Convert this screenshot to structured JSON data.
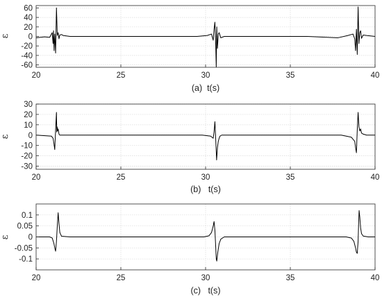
{
  "chart_data": [
    {
      "type": "line",
      "caption": "(a)  t(s)",
      "ylabel": "ε",
      "xlim": [
        20,
        40
      ],
      "ylim": [
        -65,
        65
      ],
      "xticks": [
        20,
        25,
        30,
        35,
        40
      ],
      "yticks": [
        -60,
        -40,
        -20,
        0,
        20,
        40,
        60
      ],
      "grid": true,
      "series": [
        {
          "x": [
            20,
            20.5,
            20.8,
            20.95,
            21.0,
            21.03,
            21.06,
            21.1,
            21.15,
            21.2,
            21.25,
            21.3,
            21.35,
            21.4,
            21.5,
            21.6,
            22,
            24,
            26,
            28,
            29.5,
            30.1,
            30.35,
            30.45,
            30.5,
            30.55,
            30.6,
            30.63,
            30.66,
            30.7,
            30.75,
            30.8,
            30.9,
            31.1,
            33,
            36,
            37.8,
            38.4,
            38.7,
            38.8,
            38.85,
            38.9,
            38.95,
            39.0,
            39.05,
            39.1,
            39.15,
            39.2,
            39.3,
            39.5,
            40
          ],
          "y": [
            -3,
            -1,
            -2,
            8,
            -15,
            12,
            -30,
            5,
            -35,
            60,
            2,
            8,
            -5,
            3,
            4,
            2,
            0,
            0,
            0,
            0,
            0,
            2,
            5,
            -8,
            15,
            30,
            -20,
            -65,
            20,
            -25,
            5,
            8,
            -3,
            0,
            0,
            0,
            -3,
            2,
            5,
            -5,
            -30,
            15,
            -38,
            62,
            -15,
            8,
            12,
            -4,
            3,
            2,
            0
          ]
        }
      ]
    },
    {
      "type": "line",
      "caption": "(b)   t(s)",
      "ylabel": "ε",
      "xlim": [
        20,
        40
      ],
      "ylim": [
        -33,
        30
      ],
      "xticks": [
        20,
        25,
        30,
        35,
        40
      ],
      "yticks": [
        -30,
        -20,
        -10,
        0,
        10,
        20,
        30
      ],
      "grid": true,
      "series": [
        {
          "x": [
            20,
            20.9,
            21.0,
            21.05,
            21.1,
            21.15,
            21.2,
            21.22,
            21.24,
            21.27,
            21.3,
            21.35,
            21.4,
            21.6,
            24,
            27,
            29.8,
            30.3,
            30.45,
            30.5,
            30.55,
            30.6,
            30.65,
            30.7,
            30.75,
            30.8,
            30.85,
            30.95,
            31.2,
            33,
            36,
            38.0,
            38.6,
            38.8,
            38.85,
            38.9,
            38.95,
            39.0,
            39.05,
            39.1,
            39.15,
            39.2,
            39.3,
            39.5,
            40
          ],
          "y": [
            0,
            -1,
            -3,
            -8,
            -14,
            5,
            22,
            3,
            8,
            4,
            6,
            1,
            0,
            0,
            0,
            0,
            0,
            -1,
            -3,
            3,
            13,
            -5,
            -24,
            -12,
            -6,
            -3,
            -1,
            0,
            0,
            0,
            0,
            0,
            -2,
            -6,
            -12,
            -17,
            5,
            22,
            8,
            4,
            6,
            2,
            1,
            0,
            0
          ]
        }
      ]
    },
    {
      "type": "line",
      "caption": "(c)   t(s)",
      "ylabel": "ε",
      "xlim": [
        20,
        40
      ],
      "ylim": [
        -0.15,
        0.15
      ],
      "xticks": [
        20,
        25,
        30,
        35,
        40
      ],
      "yticks": [
        -0.1,
        -0.05,
        0,
        0.05,
        0.1
      ],
      "grid": true,
      "series": [
        {
          "x": [
            20,
            20.8,
            20.95,
            21.05,
            21.1,
            21.15,
            21.2,
            21.25,
            21.3,
            21.35,
            21.4,
            21.5,
            22,
            25,
            28,
            29.9,
            30.2,
            30.35,
            30.45,
            30.5,
            30.55,
            30.6,
            30.63,
            30.66,
            30.72,
            30.8,
            30.9,
            31.1,
            31.4,
            34,
            37,
            38.3,
            38.6,
            38.75,
            38.85,
            38.9,
            38.95,
            39.0,
            39.03,
            39.06,
            39.1,
            39.15,
            39.2,
            39.3,
            39.6,
            40
          ],
          "y": [
            0,
            0,
            -0.005,
            -0.03,
            -0.05,
            -0.065,
            -0.02,
            0.05,
            0.11,
            0.06,
            0.02,
            0.003,
            0,
            0,
            0,
            0,
            0.005,
            0.02,
            0.05,
            0.07,
            0.03,
            -0.05,
            -0.1,
            -0.11,
            -0.07,
            -0.03,
            -0.01,
            0,
            0,
            0,
            0,
            0,
            -0.005,
            -0.02,
            -0.05,
            -0.07,
            -0.075,
            -0.02,
            0.06,
            0.12,
            0.09,
            0.04,
            0.015,
            0.004,
            0,
            0
          ]
        }
      ]
    }
  ]
}
